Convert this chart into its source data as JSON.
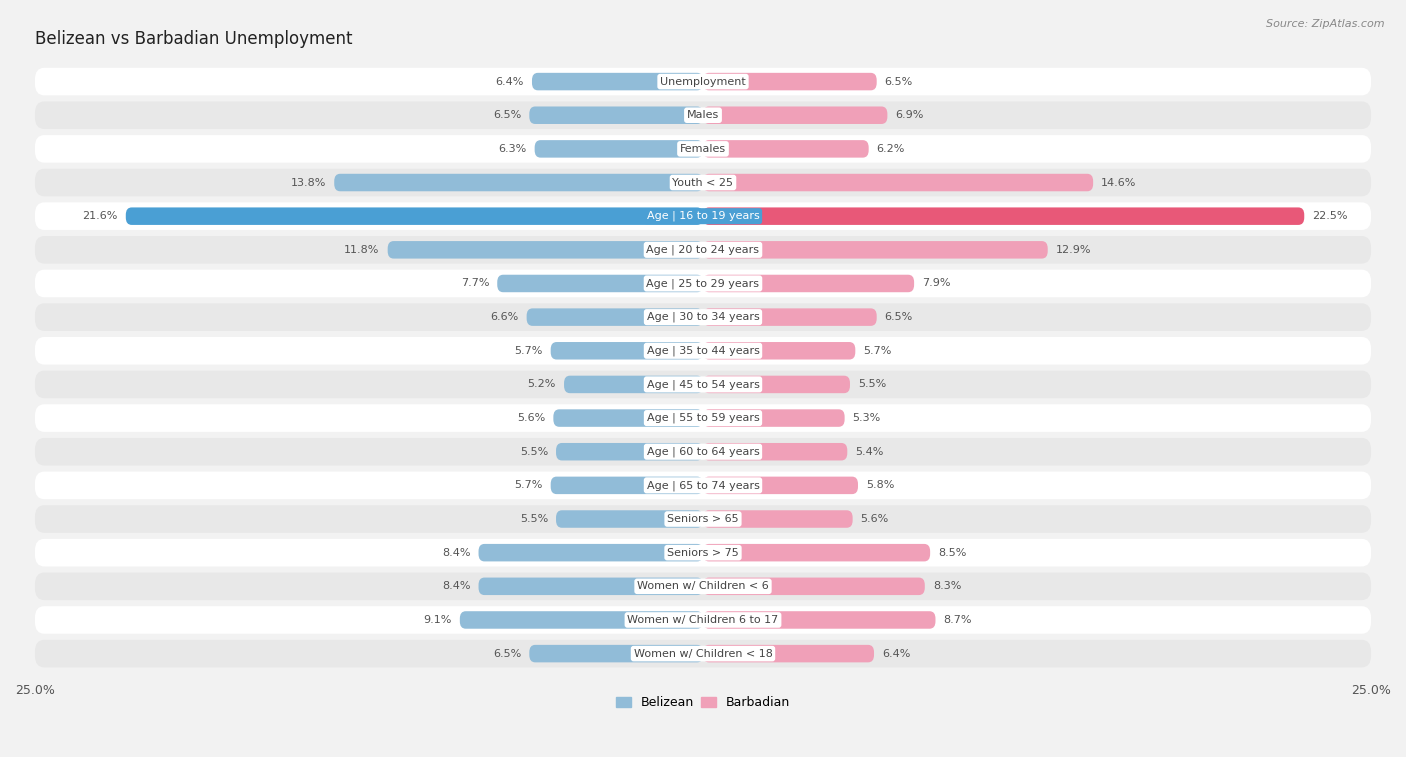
{
  "title": "Belizean vs Barbadian Unemployment",
  "source": "Source: ZipAtlas.com",
  "categories": [
    "Unemployment",
    "Males",
    "Females",
    "Youth < 25",
    "Age | 16 to 19 years",
    "Age | 20 to 24 years",
    "Age | 25 to 29 years",
    "Age | 30 to 34 years",
    "Age | 35 to 44 years",
    "Age | 45 to 54 years",
    "Age | 55 to 59 years",
    "Age | 60 to 64 years",
    "Age | 65 to 74 years",
    "Seniors > 65",
    "Seniors > 75",
    "Women w/ Children < 6",
    "Women w/ Children 6 to 17",
    "Women w/ Children < 18"
  ],
  "belizean": [
    6.4,
    6.5,
    6.3,
    13.8,
    21.6,
    11.8,
    7.7,
    6.6,
    5.7,
    5.2,
    5.6,
    5.5,
    5.7,
    5.5,
    8.4,
    8.4,
    9.1,
    6.5
  ],
  "barbadian": [
    6.5,
    6.9,
    6.2,
    14.6,
    22.5,
    12.9,
    7.9,
    6.5,
    5.7,
    5.5,
    5.3,
    5.4,
    5.8,
    5.6,
    8.5,
    8.3,
    8.7,
    6.4
  ],
  "belizean_color": "#91bcd8",
  "barbadian_color": "#f0a0b8",
  "highlight_belizean_color": "#4a9fd4",
  "highlight_barbadian_color": "#e85878",
  "background_color": "#f2f2f2",
  "row_bg_even": "#ffffff",
  "row_bg_odd": "#e8e8e8",
  "max_val": 25.0,
  "legend_belizean": "Belizean",
  "legend_barbadian": "Barbadian"
}
